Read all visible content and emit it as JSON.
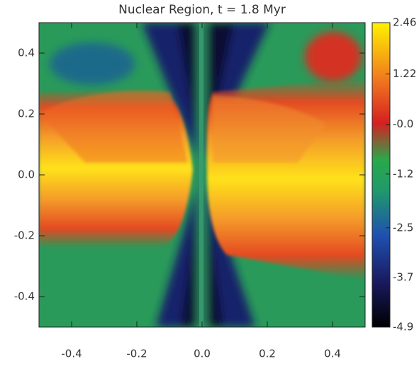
{
  "chart_data": {
    "type": "heatmap",
    "title": "Nuclear Region, t = 1.8 Myr",
    "xlim": [
      -0.5,
      0.5
    ],
    "xticks": [
      -0.4,
      -0.2,
      {
        "value": 0,
        "label": "0.0"
      },
      0.2,
      0.4
    ],
    "ylim": [
      -0.5,
      0.5
    ],
    "yticks": [
      -0.4,
      -0.2,
      {
        "value": 0,
        "label": "0.0"
      },
      0.2,
      0.4
    ],
    "clim": [
      -4.9,
      2.46
    ],
    "cticks": [
      2.46,
      1.22,
      {
        "value": 0,
        "label": "-0.0"
      },
      -1.2,
      -2.5,
      -3.7,
      -4.9
    ]
  }
}
